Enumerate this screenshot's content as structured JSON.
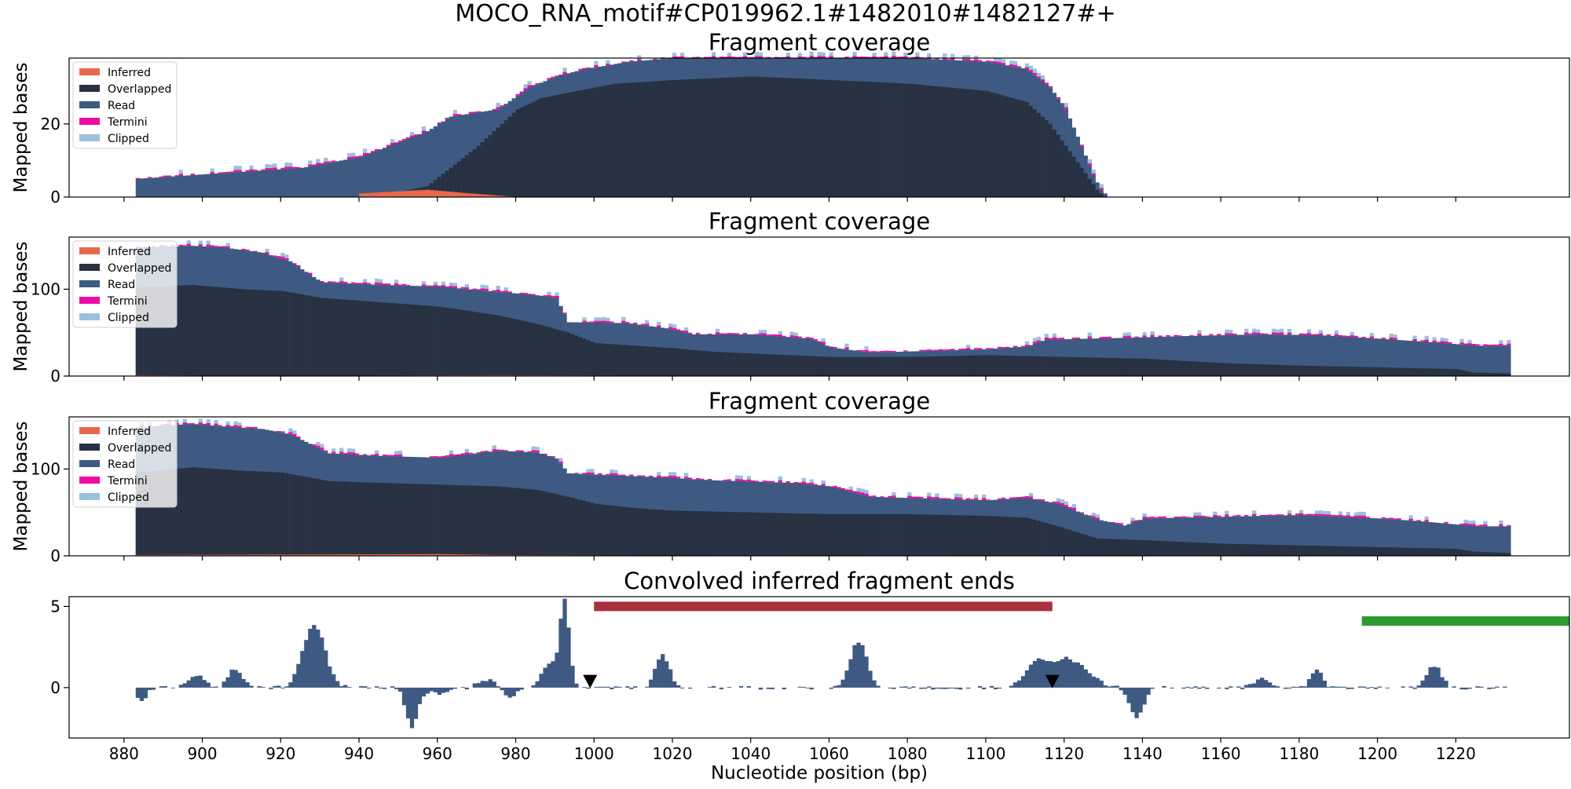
{
  "suptitle": "MOCO_RNA_motif#CP019962.1#1482010#1482127#+",
  "xlabel": "Nucleotide position (bp)",
  "colors": {
    "inferred": "#e8684a",
    "overlapped": "#273142",
    "read": "#3e5a82",
    "termini": "#ee0aa6",
    "clipped": "#9cc1da",
    "red_bar": "#a8313d",
    "green_bar": "#2e9b31",
    "marker": "#000000"
  },
  "chart_data": [
    {
      "type": "area",
      "title": "Fragment coverage",
      "ylabel": "Mapped bases",
      "legend": [
        "Inferred",
        "Overlapped",
        "Read",
        "Termini",
        "Clipped"
      ],
      "legend_position": "top-left",
      "xlim": [
        866,
        1249
      ],
      "ylim": [
        0,
        38
      ],
      "yticks": [
        0,
        20
      ],
      "xticks": [
        880,
        900,
        920,
        940,
        960,
        980,
        1000,
        1020,
        1040,
        1060,
        1080,
        1100,
        1120,
        1140,
        1160,
        1180,
        1200,
        1220
      ],
      "read_profile": [
        [
          883,
          5
        ],
        [
          897,
          6
        ],
        [
          911,
          7
        ],
        [
          925,
          8
        ],
        [
          940,
          11
        ],
        [
          957,
          18
        ],
        [
          963,
          22
        ],
        [
          975,
          24
        ],
        [
          983,
          30
        ],
        [
          990,
          33
        ],
        [
          997,
          35
        ],
        [
          1003,
          36
        ],
        [
          1008,
          37
        ],
        [
          1020,
          38
        ],
        [
          1080,
          38
        ],
        [
          1100,
          37
        ],
        [
          1110,
          35
        ],
        [
          1116,
          30
        ],
        [
          1120,
          24
        ],
        [
          1124,
          14
        ],
        [
          1127,
          6
        ],
        [
          1129,
          2
        ],
        [
          1131,
          0
        ]
      ],
      "overlapped_profile": [
        [
          883,
          0
        ],
        [
          940,
          0
        ],
        [
          948,
          1
        ],
        [
          957,
          3
        ],
        [
          963,
          8
        ],
        [
          970,
          14
        ],
        [
          976,
          20
        ],
        [
          980,
          24
        ],
        [
          986,
          27
        ],
        [
          995,
          29
        ],
        [
          1005,
          31
        ],
        [
          1020,
          32
        ],
        [
          1040,
          33
        ],
        [
          1060,
          32
        ],
        [
          1080,
          31
        ],
        [
          1100,
          29
        ],
        [
          1110,
          26
        ],
        [
          1116,
          20
        ],
        [
          1120,
          14
        ],
        [
          1124,
          8
        ],
        [
          1128,
          2
        ],
        [
          1130,
          0
        ]
      ],
      "inferred_profile": [
        [
          940,
          1
        ],
        [
          957,
          2
        ],
        [
          968,
          1
        ],
        [
          980,
          0
        ]
      ],
      "clipped_extra": 0.8,
      "termini_extra": 0.6
    },
    {
      "type": "area",
      "title": "Fragment coverage",
      "ylabel": "Mapped bases",
      "legend": [
        "Inferred",
        "Overlapped",
        "Read",
        "Termini",
        "Clipped"
      ],
      "legend_position": "top-left",
      "xlim": [
        866,
        1249
      ],
      "ylim": [
        0,
        160
      ],
      "yticks": [
        0,
        100
      ],
      "xticks": [
        880,
        900,
        920,
        940,
        960,
        980,
        1000,
        1020,
        1040,
        1060,
        1080,
        1100,
        1120,
        1140,
        1160,
        1180,
        1200,
        1220
      ],
      "read_profile": [
        [
          883,
          148
        ],
        [
          897,
          150
        ],
        [
          905,
          148
        ],
        [
          915,
          142
        ],
        [
          922,
          132
        ],
        [
          930,
          108
        ],
        [
          945,
          105
        ],
        [
          960,
          103
        ],
        [
          975,
          97
        ],
        [
          985,
          93
        ],
        [
          990,
          90
        ],
        [
          993,
          62
        ],
        [
          1008,
          61
        ],
        [
          1018,
          55
        ],
        [
          1025,
          48
        ],
        [
          1040,
          48
        ],
        [
          1055,
          43
        ],
        [
          1060,
          33
        ],
        [
          1070,
          27
        ],
        [
          1085,
          29
        ],
        [
          1100,
          31
        ],
        [
          1110,
          34
        ],
        [
          1115,
          42
        ],
        [
          1135,
          44
        ],
        [
          1150,
          46
        ],
        [
          1170,
          48
        ],
        [
          1185,
          47
        ],
        [
          1200,
          43
        ],
        [
          1210,
          40
        ],
        [
          1225,
          35
        ],
        [
          1234,
          35
        ]
      ],
      "overlapped_profile": [
        [
          883,
          102
        ],
        [
          897,
          105
        ],
        [
          910,
          100
        ],
        [
          920,
          98
        ],
        [
          930,
          90
        ],
        [
          945,
          85
        ],
        [
          960,
          80
        ],
        [
          975,
          70
        ],
        [
          985,
          60
        ],
        [
          993,
          50
        ],
        [
          1000,
          38
        ],
        [
          1010,
          35
        ],
        [
          1020,
          32
        ],
        [
          1030,
          28
        ],
        [
          1040,
          26
        ],
        [
          1060,
          22
        ],
        [
          1080,
          22
        ],
        [
          1100,
          24
        ],
        [
          1120,
          22
        ],
        [
          1140,
          20
        ],
        [
          1160,
          15
        ],
        [
          1180,
          12
        ],
        [
          1200,
          10
        ],
        [
          1220,
          8
        ],
        [
          1224,
          4
        ],
        [
          1234,
          3
        ]
      ],
      "inferred_profile": [
        [
          883,
          1
        ],
        [
          915,
          0
        ],
        [
          975,
          1
        ],
        [
          1035,
          0
        ]
      ],
      "clipped_extra": 3,
      "termini_extra": 2.5
    },
    {
      "type": "area",
      "title": "Fragment coverage",
      "ylabel": "Mapped bases",
      "legend": [
        "Inferred",
        "Overlapped",
        "Read",
        "Termini",
        "Clipped"
      ],
      "legend_position": "top-left",
      "xlim": [
        866,
        1249
      ],
      "ylim": [
        0,
        160
      ],
      "yticks": [
        0,
        100
      ],
      "xticks": [
        880,
        900,
        920,
        940,
        960,
        980,
        1000,
        1020,
        1040,
        1060,
        1080,
        1100,
        1120,
        1140,
        1160,
        1180,
        1200,
        1220
      ],
      "read_profile": [
        [
          883,
          148
        ],
        [
          897,
          152
        ],
        [
          905,
          149
        ],
        [
          915,
          146
        ],
        [
          922,
          140
        ],
        [
          932,
          118
        ],
        [
          945,
          115
        ],
        [
          960,
          113
        ],
        [
          975,
          121
        ],
        [
          985,
          119
        ],
        [
          990,
          112
        ],
        [
          993,
          95
        ],
        [
          1008,
          92
        ],
        [
          1018,
          90
        ],
        [
          1030,
          87
        ],
        [
          1050,
          84
        ],
        [
          1060,
          80
        ],
        [
          1070,
          68
        ],
        [
          1085,
          66
        ],
        [
          1100,
          64
        ],
        [
          1110,
          67
        ],
        [
          1118,
          60
        ],
        [
          1128,
          42
        ],
        [
          1135,
          35
        ],
        [
          1140,
          43
        ],
        [
          1160,
          45
        ],
        [
          1180,
          47
        ],
        [
          1200,
          43
        ],
        [
          1210,
          40
        ],
        [
          1225,
          34
        ],
        [
          1234,
          34
        ]
      ],
      "overlapped_profile": [
        [
          883,
          96
        ],
        [
          897,
          102
        ],
        [
          910,
          98
        ],
        [
          920,
          96
        ],
        [
          932,
          86
        ],
        [
          945,
          84
        ],
        [
          960,
          82
        ],
        [
          975,
          80
        ],
        [
          985,
          76
        ],
        [
          993,
          68
        ],
        [
          1000,
          60
        ],
        [
          1010,
          55
        ],
        [
          1020,
          52
        ],
        [
          1040,
          50
        ],
        [
          1060,
          48
        ],
        [
          1080,
          48
        ],
        [
          1100,
          46
        ],
        [
          1110,
          44
        ],
        [
          1118,
          34
        ],
        [
          1128,
          20
        ],
        [
          1140,
          18
        ],
        [
          1160,
          14
        ],
        [
          1180,
          12
        ],
        [
          1200,
          10
        ],
        [
          1220,
          8
        ],
        [
          1224,
          5
        ],
        [
          1234,
          3
        ]
      ],
      "inferred_profile": [
        [
          883,
          1
        ],
        [
          960,
          2
        ],
        [
          975,
          1
        ],
        [
          1035,
          0
        ]
      ],
      "clipped_extra": 3,
      "termini_extra": 2.5
    },
    {
      "type": "bar",
      "title": "Convolved inferred fragment ends",
      "ylabel": "",
      "xlim": [
        866,
        1249
      ],
      "ylim": [
        -3.1,
        5.6
      ],
      "yticks": [
        0,
        5
      ],
      "xticks": [
        880,
        900,
        920,
        940,
        960,
        980,
        1000,
        1020,
        1040,
        1060,
        1080,
        1100,
        1120,
        1140,
        1160,
        1180,
        1200,
        1220
      ],
      "x_range": [
        883,
        1234
      ],
      "peaks": [
        [
          884,
          -0.9,
          1.2
        ],
        [
          898,
          0.8,
          2.0
        ],
        [
          908,
          1.2,
          1.8
        ],
        [
          928,
          3.9,
          2.8
        ],
        [
          953,
          -2.4,
          1.5
        ],
        [
          960,
          -0.4,
          2.5
        ],
        [
          972,
          0.5,
          2.0
        ],
        [
          978,
          -0.6,
          1.5
        ],
        [
          988,
          1.5,
          2.0
        ],
        [
          992,
          5.2,
          1.2
        ],
        [
          1017,
          2.0,
          1.8
        ],
        [
          1067,
          2.8,
          2.2
        ],
        [
          1112,
          1.2,
          2.5
        ],
        [
          1120,
          1.8,
          5.0
        ],
        [
          1138,
          -1.8,
          1.8
        ],
        [
          1170,
          0.6,
          2.0
        ],
        [
          1184,
          1.2,
          1.4
        ],
        [
          1214,
          1.4,
          1.8
        ]
      ],
      "dips": [
        [
          880,
          0.0
        ],
        [
          937,
          -0.2
        ],
        [
          1000,
          -0.3
        ],
        [
          1033,
          0.2
        ],
        [
          1155,
          -0.2
        ]
      ],
      "red_bar": [
        1000,
        1117
      ],
      "red_bar_y": 5.0,
      "green_bar": [
        1196,
        1249
      ],
      "green_bar_y": 4.1,
      "markers": [
        999,
        1117
      ],
      "marker_y": 0.35
    }
  ]
}
